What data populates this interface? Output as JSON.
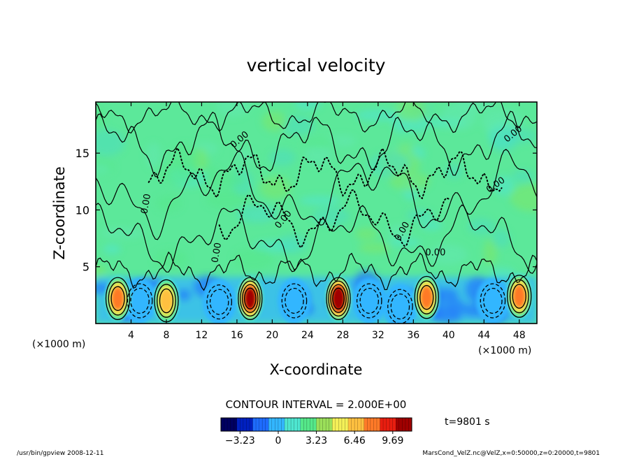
{
  "chart_data": {
    "type": "heatmap",
    "title": "vertical velocity",
    "xlabel": "X-coordinate",
    "ylabel": "Z-coordinate",
    "x_unit_left": "(×1000 m)",
    "x_unit_right": "(×1000 m)",
    "xlim": [
      0,
      50
    ],
    "ylim": [
      0,
      19.5
    ],
    "x_ticks": [
      4,
      8,
      12,
      16,
      20,
      24,
      28,
      32,
      36,
      40,
      44,
      48
    ],
    "y_ticks": [
      5,
      10,
      15
    ],
    "contour_interval_text": "CONTOUR INTERVAL = 2.000E+00",
    "contour_labels": [
      "0.00"
    ],
    "colorbar": {
      "ticks": [
        -3.23,
        0,
        3.23,
        6.46,
        9.69
      ],
      "tick_labels": [
        "−3.23",
        "0",
        "3.23",
        "6.46",
        "9.69"
      ],
      "colors": [
        "#000060",
        "#0020c0",
        "#1e6cff",
        "#33b6ff",
        "#4ee6d0",
        "#55e88a",
        "#9be05a",
        "#f4f058",
        "#ffc040",
        "#ff7a28",
        "#e81e10",
        "#a00000"
      ]
    },
    "updraft_cores": [
      {
        "x": 2.5,
        "z": 2.2,
        "max": 6.5
      },
      {
        "x": 8.0,
        "z": 2.0,
        "max": 6.0
      },
      {
        "x": 17.5,
        "z": 2.2,
        "max": 9.0
      },
      {
        "x": 27.5,
        "z": 2.2,
        "max": 9.69
      },
      {
        "x": 37.5,
        "z": 2.3,
        "max": 7.0
      },
      {
        "x": 48.0,
        "z": 2.4,
        "max": 7.0
      }
    ],
    "downdraft_cores": [
      {
        "x": 5.0,
        "z": 2.0,
        "min": -2.5
      },
      {
        "x": 14.0,
        "z": 1.9,
        "min": -3.23
      },
      {
        "x": 22.5,
        "z": 2.0,
        "min": -2.0
      },
      {
        "x": 31.0,
        "z": 2.0,
        "min": -2.2
      },
      {
        "x": 34.5,
        "z": 1.5,
        "min": -2.0
      },
      {
        "x": 45.0,
        "z": 2.0,
        "min": -2.5
      }
    ],
    "time_label": "t=9801 s",
    "footer_left": "/usr/bin/gpview   2008-12-11",
    "footer_right": "MarsCond_VelZ.nc@VelZ,x=0:50000,z=0:20000,t=9801"
  }
}
